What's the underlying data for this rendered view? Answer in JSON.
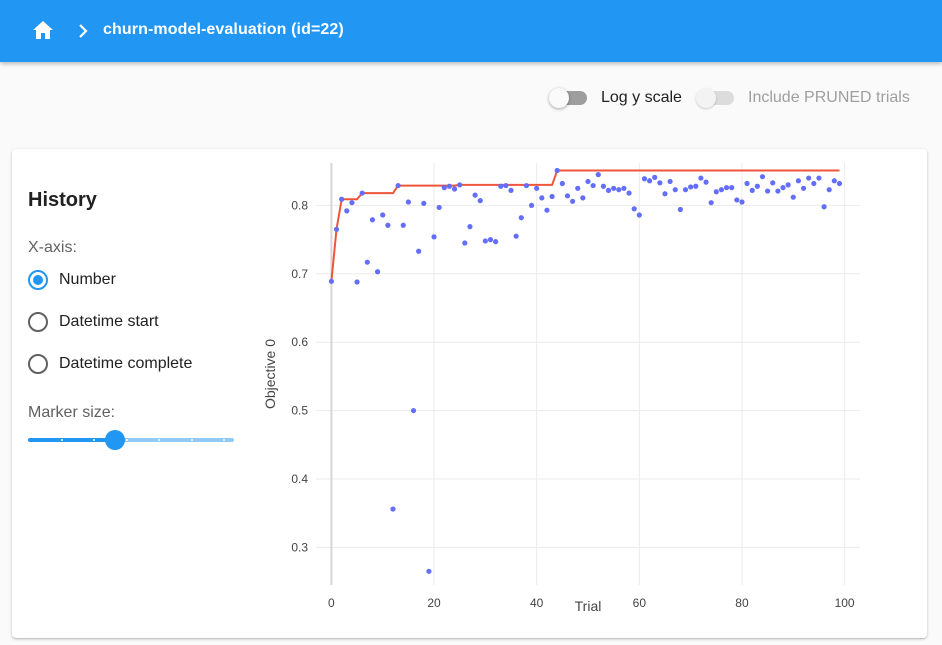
{
  "appbar": {
    "title": "churn-model-evaluation (id=22)",
    "icon": "home-icon",
    "separator": "chevron-right-icon",
    "color": "#2196f3"
  },
  "toggles": [
    {
      "label": "Log y scale",
      "checked": false,
      "enabled": true
    },
    {
      "label": "Include PRUNED trials",
      "checked": false,
      "enabled": false
    }
  ],
  "sidebar": {
    "title": "History",
    "x_axis_label": "X-axis:",
    "options": [
      {
        "label": "Number",
        "selected": true
      },
      {
        "label": "Datetime start",
        "selected": false
      },
      {
        "label": "Datetime complete",
        "selected": false
      }
    ],
    "marker_size_label": "Marker size:",
    "marker_size": {
      "min": 1,
      "max": 20,
      "value": 9
    }
  },
  "chart_data": {
    "type": "scatter",
    "xlabel": "Trial",
    "ylabel": "Objective 0",
    "xlim": [
      -3,
      103
    ],
    "ylim": [
      0.245,
      0.862
    ],
    "xticks": [
      0,
      20,
      40,
      60,
      80,
      100
    ],
    "yticks": [
      0.3,
      0.4,
      0.5,
      0.6,
      0.7,
      0.8
    ],
    "grid": true,
    "marker_color": "#636efa",
    "best_line_color": "#ef553b",
    "x": [
      0,
      1,
      2,
      3,
      4,
      5,
      6,
      7,
      8,
      9,
      10,
      11,
      12,
      13,
      14,
      15,
      16,
      17,
      18,
      19,
      20,
      21,
      22,
      23,
      24,
      25,
      26,
      27,
      28,
      29,
      30,
      31,
      32,
      33,
      34,
      35,
      36,
      37,
      38,
      39,
      40,
      41,
      42,
      43,
      44,
      45,
      46,
      47,
      48,
      49,
      50,
      51,
      52,
      53,
      54,
      55,
      56,
      57,
      58,
      59,
      60,
      61,
      62,
      63,
      64,
      65,
      66,
      67,
      68,
      69,
      70,
      71,
      72,
      73,
      74,
      75,
      76,
      77,
      78,
      79,
      80,
      81,
      82,
      83,
      84,
      85,
      86,
      87,
      88,
      89,
      90,
      91,
      92,
      93,
      94,
      95,
      96,
      97,
      98,
      99
    ],
    "values": [
      0.689,
      0.765,
      0.809,
      0.792,
      0.804,
      0.688,
      0.818,
      0.717,
      0.779,
      0.703,
      0.786,
      0.771,
      0.356,
      0.829,
      0.771,
      0.805,
      0.5,
      0.733,
      0.803,
      0.265,
      0.754,
      0.797,
      0.826,
      0.828,
      0.824,
      0.83,
      0.745,
      0.769,
      0.815,
      0.807,
      0.748,
      0.75,
      0.747,
      0.828,
      0.829,
      0.822,
      0.755,
      0.782,
      0.829,
      0.8,
      0.825,
      0.811,
      0.793,
      0.813,
      0.851,
      0.832,
      0.814,
      0.806,
      0.825,
      0.811,
      0.835,
      0.829,
      0.845,
      0.828,
      0.822,
      0.825,
      0.823,
      0.825,
      0.818,
      0.795,
      0.786,
      0.839,
      0.836,
      0.841,
      0.833,
      0.817,
      0.835,
      0.823,
      0.794,
      0.823,
      0.827,
      0.828,
      0.84,
      0.834,
      0.804,
      0.82,
      0.823,
      0.826,
      0.826,
      0.808,
      0.805,
      0.832,
      0.822,
      0.828,
      0.842,
      0.821,
      0.833,
      0.821,
      0.826,
      0.83,
      0.812,
      0.836,
      0.825,
      0.84,
      0.832,
      0.84,
      0.798,
      0.823,
      0.836,
      0.832
    ],
    "best_values": [
      0.689,
      0.765,
      0.809,
      0.809,
      0.809,
      0.809,
      0.818,
      0.818,
      0.818,
      0.818,
      0.818,
      0.818,
      0.818,
      0.829,
      0.829,
      0.829,
      0.829,
      0.829,
      0.829,
      0.829,
      0.829,
      0.829,
      0.829,
      0.829,
      0.829,
      0.83,
      0.83,
      0.83,
      0.83,
      0.83,
      0.83,
      0.83,
      0.83,
      0.83,
      0.83,
      0.83,
      0.83,
      0.83,
      0.83,
      0.83,
      0.83,
      0.83,
      0.83,
      0.83,
      0.851,
      0.851,
      0.851,
      0.851,
      0.851,
      0.851,
      0.851,
      0.851,
      0.851,
      0.851,
      0.851,
      0.851,
      0.851,
      0.851,
      0.851,
      0.851,
      0.851,
      0.851,
      0.851,
      0.851,
      0.851,
      0.851,
      0.851,
      0.851,
      0.851,
      0.851,
      0.851,
      0.851,
      0.851,
      0.851,
      0.851,
      0.851,
      0.851,
      0.851,
      0.851,
      0.851,
      0.851,
      0.851,
      0.851,
      0.851,
      0.851,
      0.851,
      0.851,
      0.851,
      0.851,
      0.851,
      0.851,
      0.851,
      0.851,
      0.851,
      0.851,
      0.851,
      0.851,
      0.851,
      0.851,
      0.851
    ]
  }
}
